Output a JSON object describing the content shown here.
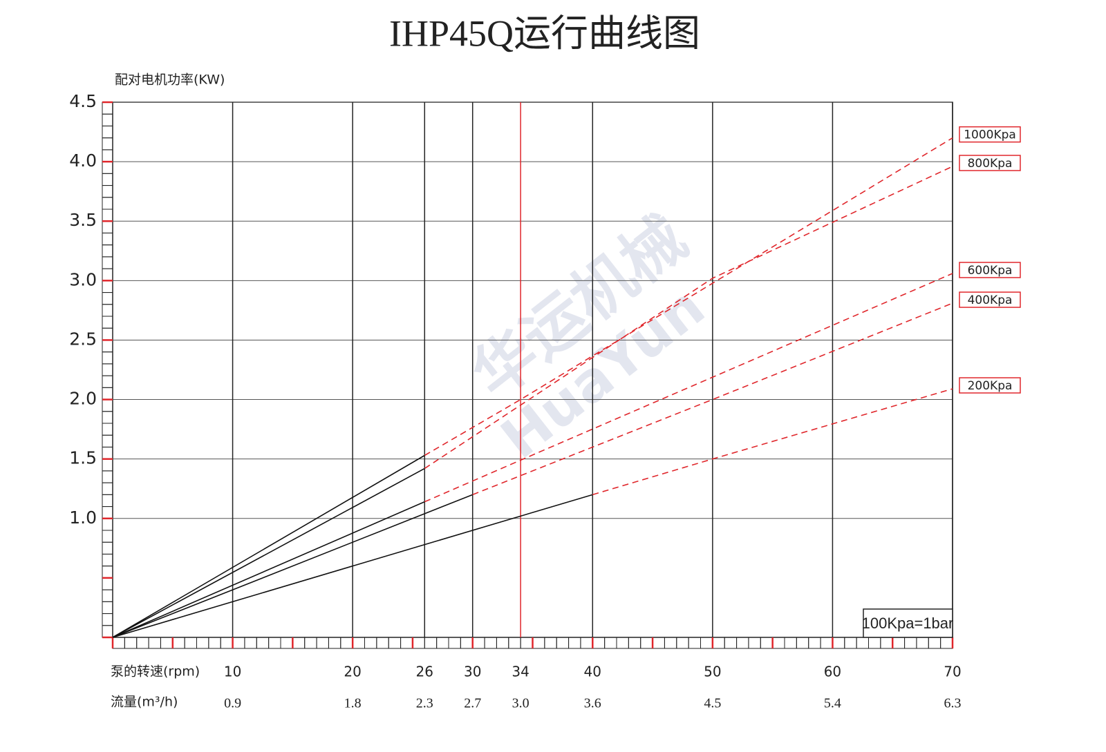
{
  "chart_data": {
    "type": "line",
    "title": "IHP45Q运行曲线图",
    "y_label": "配对电机功率(KW)",
    "x_label": "泵的转速(rpm)",
    "x2_label": "流量(m³/h)",
    "note": "100Kpa=1bar",
    "watermark": "华运机械",
    "watermark_en": "HuaYun",
    "xlim": [
      0,
      70
    ],
    "ylim": [
      0,
      4.5
    ],
    "xticks": [
      10,
      20,
      26,
      30,
      34,
      40,
      50,
      60,
      70
    ],
    "flow_labels": [
      "0.9",
      "1.8",
      "2.3",
      "2.7",
      "3.0",
      "3.6",
      "4.5",
      "5.4",
      "6.3"
    ],
    "xtick_colors": [
      "#222",
      "#222",
      "#222",
      "#222",
      "#e0262b",
      "#222",
      "#222",
      "#222",
      "#222"
    ],
    "yticks": [
      {
        "value": 1,
        "label": "1.0"
      },
      1.5,
      {
        "value": 2,
        "label": "2.0"
      },
      2.5,
      {
        "value": 3,
        "label": "3.0"
      },
      3.5,
      {
        "value": 4,
        "label": "4.0"
      },
      4.5
    ],
    "grid": true,
    "measured_color": "#111",
    "extrapolated_color": "#e0262b",
    "series": [
      {
        "name": "1000Kpa",
        "measured": {
          "x": [
            0,
            26
          ],
          "values": [
            0,
            1.53
          ]
        },
        "extrapolated": {
          "x": [
            26,
            34,
            70
          ],
          "values": [
            1.53,
            2.0,
            4.2
          ]
        }
      },
      {
        "name": "800Kpa",
        "measured": {
          "x": [
            0,
            26
          ],
          "values": [
            0,
            1.42
          ]
        },
        "extrapolated": {
          "x": [
            26,
            50,
            70
          ],
          "values": [
            1.42,
            3.02,
            3.96
          ]
        }
      },
      {
        "name": "600Kpa",
        "measured": {
          "x": [
            0,
            26
          ],
          "values": [
            0,
            1.14
          ]
        },
        "extrapolated": {
          "x": [
            26,
            34,
            70
          ],
          "values": [
            1.14,
            1.49,
            3.06
          ]
        }
      },
      {
        "name": "400Kpa",
        "measured": {
          "x": [
            0,
            30
          ],
          "values": [
            0,
            1.2
          ]
        },
        "extrapolated": {
          "x": [
            30,
            50,
            70
          ],
          "values": [
            1.2,
            2.0,
            2.81
          ]
        }
      },
      {
        "name": "200Kpa",
        "measured": {
          "x": [
            0,
            40
          ],
          "values": [
            0,
            1.2
          ]
        },
        "extrapolated": {
          "x": [
            40,
            50,
            70
          ],
          "values": [
            1.2,
            1.5,
            2.09
          ]
        }
      }
    ]
  }
}
